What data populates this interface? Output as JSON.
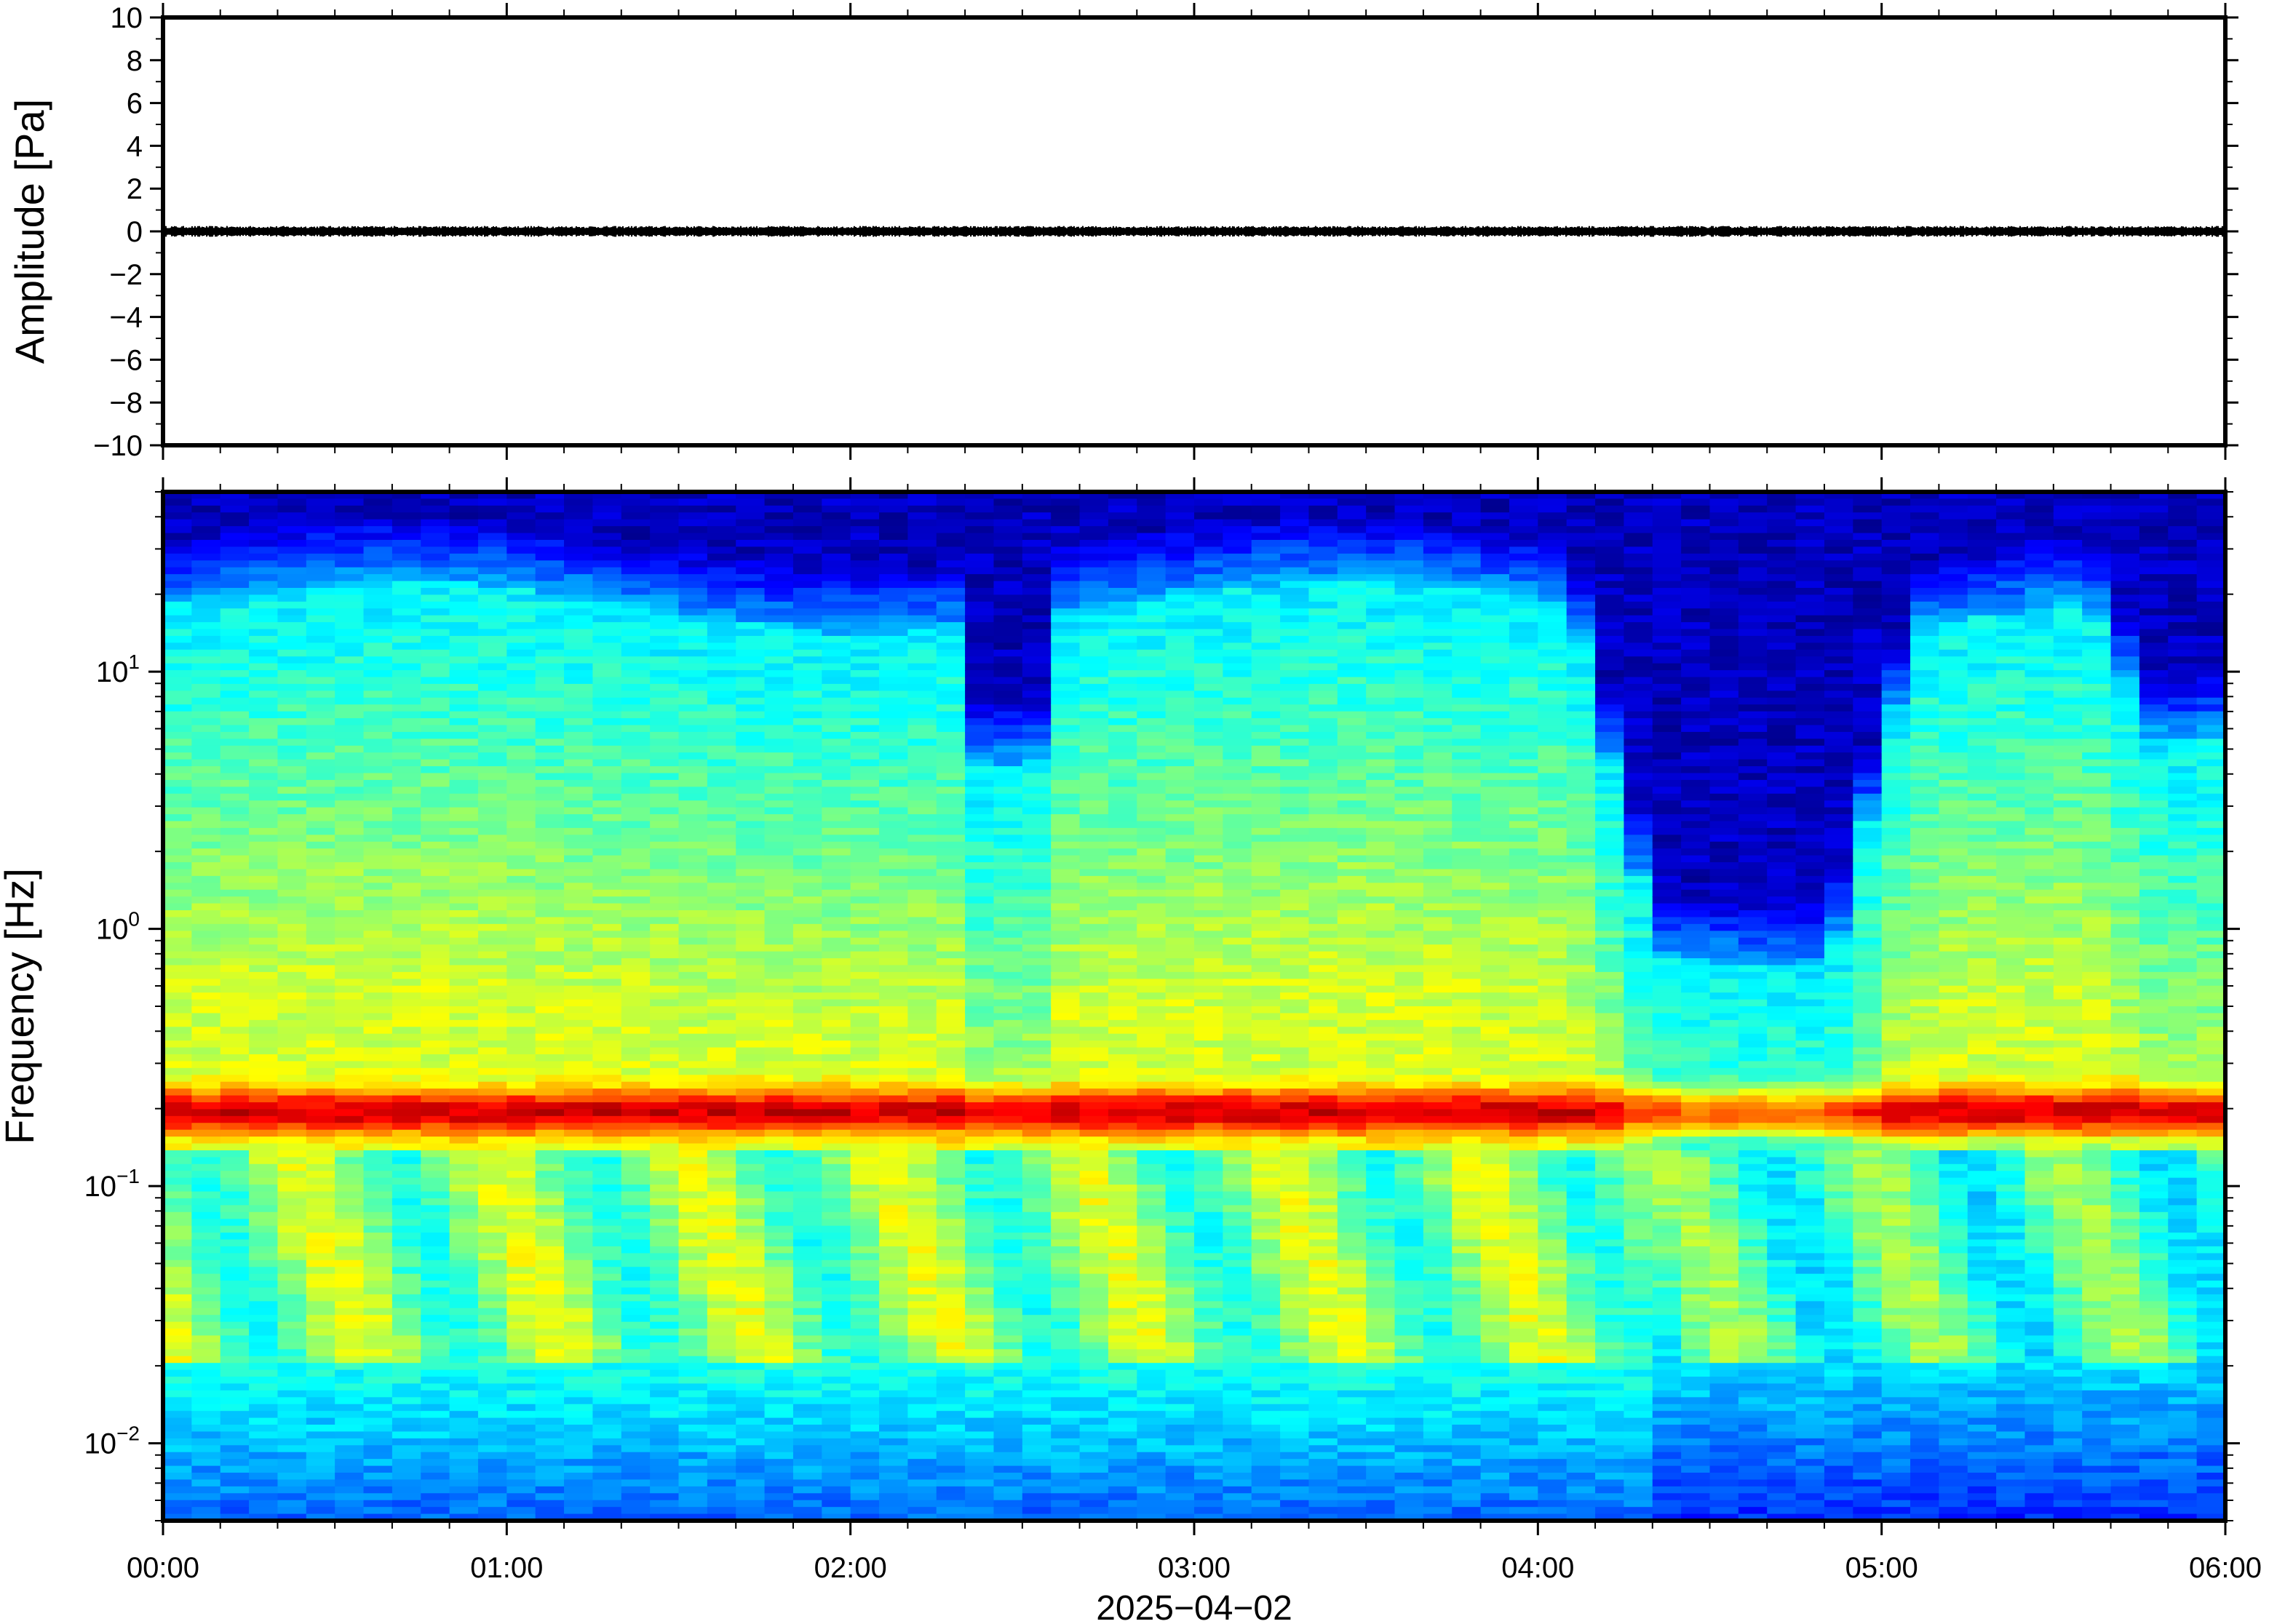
{
  "chart_data": [
    {
      "type": "line",
      "name": "waveform",
      "ylabel": "Amplitude [Pa]",
      "ylim": [
        -10,
        10
      ],
      "yticks": [
        10,
        8,
        6,
        4,
        2,
        0,
        -2,
        -4,
        -6,
        -8,
        -10
      ],
      "ytick_labels": [
        "10",
        "8",
        "6",
        "4",
        "2",
        "0",
        "−2",
        "−4",
        "−6",
        "−8",
        "−10"
      ],
      "x_range_hours": [
        0,
        6
      ],
      "signal": {
        "mean": 0.0,
        "approx_peak_amplitude": 0.25
      },
      "line_color": "#000000"
    },
    {
      "type": "heatmap",
      "name": "spectrogram",
      "ylabel": "Frequency [Hz]",
      "yscale": "log",
      "ylim": [
        0.005,
        50
      ],
      "yticks": [
        {
          "base": "10",
          "exp": "1",
          "value": 10
        },
        {
          "base": "10",
          "exp": "0",
          "value": 1
        },
        {
          "base": "10",
          "exp": "−1",
          "value": 0.1
        },
        {
          "base": "10",
          "exp": "−2",
          "value": 0.01
        }
      ],
      "colormap": "jet",
      "features": {
        "microseism_band_hz": [
          0.15,
          0.25
        ],
        "quiet_period_hours": [
          4.35,
          4.95
        ],
        "quiet_dip_hours": [
          2.3,
          2.55
        ]
      }
    }
  ],
  "xaxis": {
    "tick_labels": [
      "00:00",
      "01:00",
      "02:00",
      "03:00",
      "04:00",
      "05:00",
      "06:00"
    ],
    "date_label": "2025−04−02",
    "minor_ticks_per_hour": 6
  }
}
